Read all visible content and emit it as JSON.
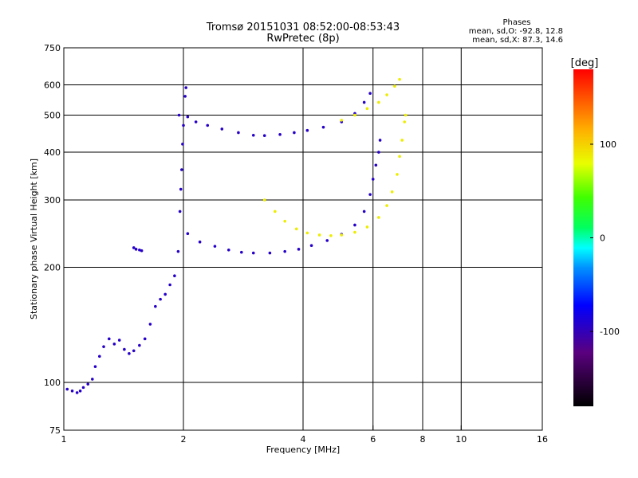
{
  "chart_data": {
    "type": "scatter",
    "title": "Tromsø 20151031 08:52:00-08:53:43",
    "subtitle": "RwPretec (8p)",
    "xlabel": "Frequency [MHz]",
    "ylabel": "Stationary phase Virtual Height [km]",
    "x_scale": "log",
    "y_scale": "log",
    "xlim": [
      1,
      16
    ],
    "ylim": [
      75,
      750
    ],
    "x_ticks": [
      1,
      2,
      4,
      6,
      8,
      10,
      16
    ],
    "y_ticks": [
      75,
      100,
      200,
      300,
      400,
      500,
      600,
      750
    ],
    "x_gridlines": [
      2,
      4,
      6,
      8,
      10
    ],
    "y_gridlines": [
      100,
      200,
      300,
      400,
      500,
      600
    ],
    "grid": true,
    "legend": {
      "title": "Phases",
      "lines": [
        "mean, sd,O: -92.8, 12.8",
        "mean, sd,X:  87.3, 14.6"
      ],
      "placement": "top-right"
    },
    "colorbar": {
      "label": "[deg]",
      "min": -180,
      "max": 180,
      "ticks": [
        -100,
        0,
        100
      ]
    },
    "series": [
      {
        "mode": "O",
        "phase_deg": -93,
        "points": [
          [
            1.02,
            96
          ],
          [
            1.05,
            95
          ],
          [
            1.08,
            94
          ],
          [
            1.1,
            95
          ],
          [
            1.12,
            97
          ],
          [
            1.15,
            99
          ],
          [
            1.18,
            102
          ],
          [
            1.2,
            110
          ],
          [
            1.23,
            117
          ],
          [
            1.26,
            124
          ],
          [
            1.3,
            130
          ],
          [
            1.34,
            126
          ],
          [
            1.38,
            129
          ],
          [
            1.42,
            122
          ],
          [
            1.46,
            119
          ],
          [
            1.5,
            121
          ],
          [
            1.55,
            125
          ],
          [
            1.6,
            130
          ],
          [
            1.65,
            142
          ],
          [
            1.7,
            158
          ],
          [
            1.75,
            165
          ],
          [
            1.8,
            170
          ],
          [
            1.85,
            180
          ],
          [
            1.9,
            190
          ],
          [
            1.94,
            220
          ],
          [
            1.96,
            280
          ],
          [
            1.98,
            360
          ],
          [
            2.0,
            470
          ],
          [
            2.02,
            560
          ],
          [
            2.03,
            590
          ],
          [
            1.95,
            500
          ],
          [
            1.99,
            420
          ],
          [
            1.97,
            320
          ],
          [
            1.5,
            225
          ],
          [
            1.52,
            223
          ],
          [
            1.55,
            222
          ],
          [
            1.57,
            221
          ],
          [
            2.05,
            495
          ],
          [
            2.15,
            480
          ],
          [
            2.3,
            470
          ],
          [
            2.5,
            460
          ],
          [
            2.75,
            450
          ],
          [
            3.0,
            443
          ],
          [
            3.2,
            442
          ],
          [
            3.5,
            445
          ],
          [
            3.8,
            450
          ],
          [
            4.1,
            456
          ],
          [
            4.5,
            465
          ],
          [
            5.0,
            480
          ],
          [
            5.4,
            505
          ],
          [
            5.7,
            540
          ],
          [
            5.9,
            570
          ],
          [
            2.05,
            245
          ],
          [
            2.2,
            233
          ],
          [
            2.4,
            227
          ],
          [
            2.6,
            222
          ],
          [
            2.8,
            219
          ],
          [
            3.0,
            218
          ],
          [
            3.3,
            218
          ],
          [
            3.6,
            220
          ],
          [
            3.9,
            223
          ],
          [
            4.2,
            228
          ],
          [
            4.6,
            235
          ],
          [
            5.0,
            244
          ],
          [
            5.4,
            258
          ],
          [
            5.7,
            280
          ],
          [
            5.9,
            310
          ],
          [
            6.0,
            340
          ],
          [
            6.1,
            370
          ],
          [
            6.2,
            400
          ],
          [
            6.25,
            430
          ]
        ]
      },
      {
        "mode": "X",
        "phase_deg": 87,
        "points": [
          [
            3.2,
            300
          ],
          [
            3.4,
            280
          ],
          [
            3.6,
            264
          ],
          [
            3.85,
            252
          ],
          [
            4.1,
            246
          ],
          [
            4.4,
            243
          ],
          [
            4.7,
            242
          ],
          [
            5.0,
            243
          ],
          [
            5.4,
            247
          ],
          [
            5.8,
            255
          ],
          [
            6.2,
            270
          ],
          [
            6.5,
            290
          ],
          [
            6.7,
            315
          ],
          [
            6.9,
            350
          ],
          [
            7.0,
            390
          ],
          [
            7.1,
            430
          ],
          [
            7.2,
            480
          ],
          [
            7.25,
            500
          ],
          [
            5.0,
            485
          ],
          [
            5.4,
            500
          ],
          [
            5.8,
            520
          ],
          [
            6.2,
            540
          ],
          [
            6.5,
            565
          ],
          [
            6.8,
            595
          ],
          [
            7.0,
            620
          ]
        ]
      }
    ]
  }
}
